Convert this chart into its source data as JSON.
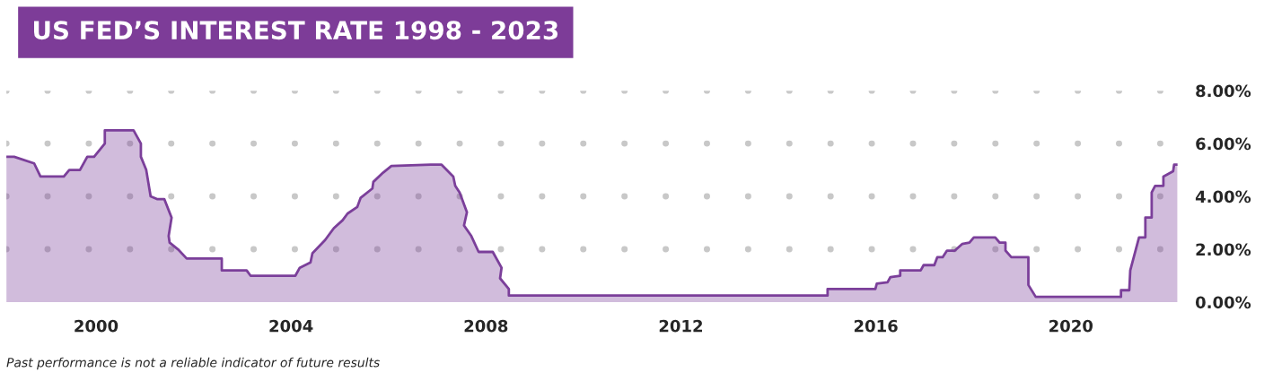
{
  "chart_data": {
    "type": "area",
    "title": "US FED’S INTEREST RATE 1998 - 2023",
    "annotations": [
      "Past performance is not a reliable indicator of future results"
    ],
    "series": [
      {
        "color": "#7b3f9a",
        "x": [
          1998.16,
          1998.32,
          1998.73,
          1998.86,
          1999.34,
          1999.45,
          1999.67,
          1999.82,
          1999.96,
          2000.18,
          2000.18,
          2000.77,
          2000.92,
          2000.92,
          2001.03,
          2001.12,
          2001.25,
          2001.4,
          2001.55,
          2001.49,
          2001.51,
          2001.68,
          2001.86,
          2002.58,
          2002.58,
          2003.09,
          2003.17,
          2004.09,
          2004.18,
          2004.4,
          2004.44,
          2004.7,
          2004.88,
          2005.06,
          2005.16,
          2005.36,
          2005.43,
          2005.67,
          2005.69,
          2005.89,
          2006.06,
          2006.87,
          2007.09,
          2007.33,
          2007.37,
          2007.46,
          2007.61,
          2007.55,
          2007.7,
          2007.85,
          2008.14,
          2008.32,
          2008.29,
          2008.47,
          2008.47,
          2015.01,
          2015.01,
          2015.99,
          2016.02,
          2016.24,
          2016.3,
          2016.5,
          2016.5,
          2016.92,
          2016.98,
          2017.2,
          2017.26,
          2017.37,
          2017.46,
          2017.62,
          2017.77,
          2017.92,
          2018.01,
          2018.45,
          2018.54,
          2018.66,
          2018.66,
          2018.78,
          2019.13,
          2019.13,
          2019.28,
          2021.03,
          2021.03,
          2021.2,
          2021.22,
          2021.4,
          2021.53,
          2021.53,
          2021.66,
          2021.66,
          2021.73,
          2021.9,
          2021.9,
          2022.1,
          2022.12,
          2022.19
        ],
        "values": [
          5.5,
          5.5,
          5.25,
          4.75,
          4.75,
          5.0,
          5.0,
          5.5,
          5.5,
          6.0,
          6.5,
          6.5,
          6.0,
          5.5,
          5.0,
          4.0,
          3.9,
          3.9,
          3.2,
          2.5,
          2.25,
          2.0,
          1.65,
          1.65,
          1.2,
          1.2,
          1.0,
          1.0,
          1.3,
          1.5,
          1.85,
          2.35,
          2.8,
          3.1,
          3.35,
          3.6,
          3.95,
          4.3,
          4.55,
          4.9,
          5.15,
          5.2,
          5.2,
          4.75,
          4.4,
          4.15,
          3.4,
          2.9,
          2.5,
          1.9,
          1.9,
          1.3,
          0.9,
          0.5,
          0.25,
          0.25,
          0.5,
          0.5,
          0.7,
          0.75,
          0.95,
          1.0,
          1.2,
          1.2,
          1.4,
          1.4,
          1.7,
          1.7,
          1.95,
          1.95,
          2.2,
          2.25,
          2.45,
          2.45,
          2.25,
          2.25,
          1.95,
          1.7,
          1.7,
          0.65,
          0.2,
          0.2,
          0.45,
          0.45,
          1.2,
          2.45,
          2.45,
          3.2,
          3.2,
          4.15,
          4.4,
          4.4,
          4.75,
          4.95,
          5.2,
          5.2
        ]
      }
    ],
    "xlim": [
      1998.16,
      2022.19
    ],
    "xticks": [
      2000,
      2004,
      2008,
      2012,
      2016,
      2020
    ],
    "ylim": [
      0,
      8
    ],
    "yticks": [
      {
        "value": 0,
        "label": "0.00%"
      },
      {
        "value": 2,
        "label": "2.00%"
      },
      {
        "value": 4,
        "label": "4.00%"
      },
      {
        "value": 6,
        "label": "6.00%"
      },
      {
        "value": 8,
        "label": "8.00%"
      }
    ],
    "grid": "y"
  }
}
